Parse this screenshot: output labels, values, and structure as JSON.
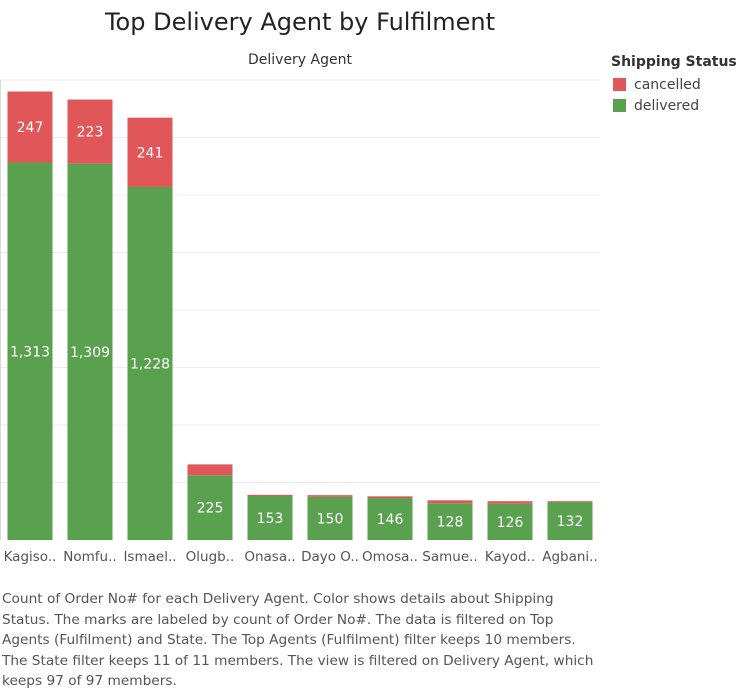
{
  "title": "Top Delivery Agent by Fulfilment",
  "column_header": "Delivery Agent",
  "legend": {
    "title": "Shipping Status",
    "items": [
      {
        "label": "cancelled",
        "color": "#E15759"
      },
      {
        "label": "delivered",
        "color": "#59A14F"
      }
    ]
  },
  "caption": "Count of Order No# for each Delivery Agent.  Color shows details about Shipping Status.  The marks are labeled by count of Order No#. The data is filtered on Top Agents (Fulfilment) and State. The Top Agents (Fulfilment) filter keeps 10 members. The State filter keeps 11 of 11 members. The view is filtered on Delivery Agent, which keeps 97 of 97 members.",
  "chart_data": {
    "type": "bar",
    "stacked": true,
    "title": "Top Delivery Agent by Fulfilment",
    "xlabel": "Delivery Agent",
    "ylabel": "",
    "ylim": [
      0,
      1600
    ],
    "grid": true,
    "legend_position": "right",
    "categories": [
      "Kagiso..",
      "Nomfu..",
      "Ismael..",
      "Olugb..",
      "Onasa..",
      "Dayo O..",
      "Omosa..",
      "Samue..",
      "Kayod..",
      "Agbani.."
    ],
    "series": [
      {
        "name": "delivered",
        "color": "#59A14F",
        "values": [
          1313,
          1309,
          1228,
          225,
          153,
          150,
          146,
          128,
          126,
          132
        ],
        "labels": [
          "1,313",
          "1,309",
          "1,228",
          "225",
          "153",
          "150",
          "146",
          "128",
          "126",
          "132"
        ]
      },
      {
        "name": "cancelled",
        "color": "#E15759",
        "values": [
          247,
          223,
          241,
          38,
          4,
          6,
          6,
          10,
          9,
          3
        ],
        "labels": [
          "247",
          "223",
          "241",
          "",
          "",
          "",
          "",
          "",
          "",
          ""
        ]
      }
    ]
  }
}
